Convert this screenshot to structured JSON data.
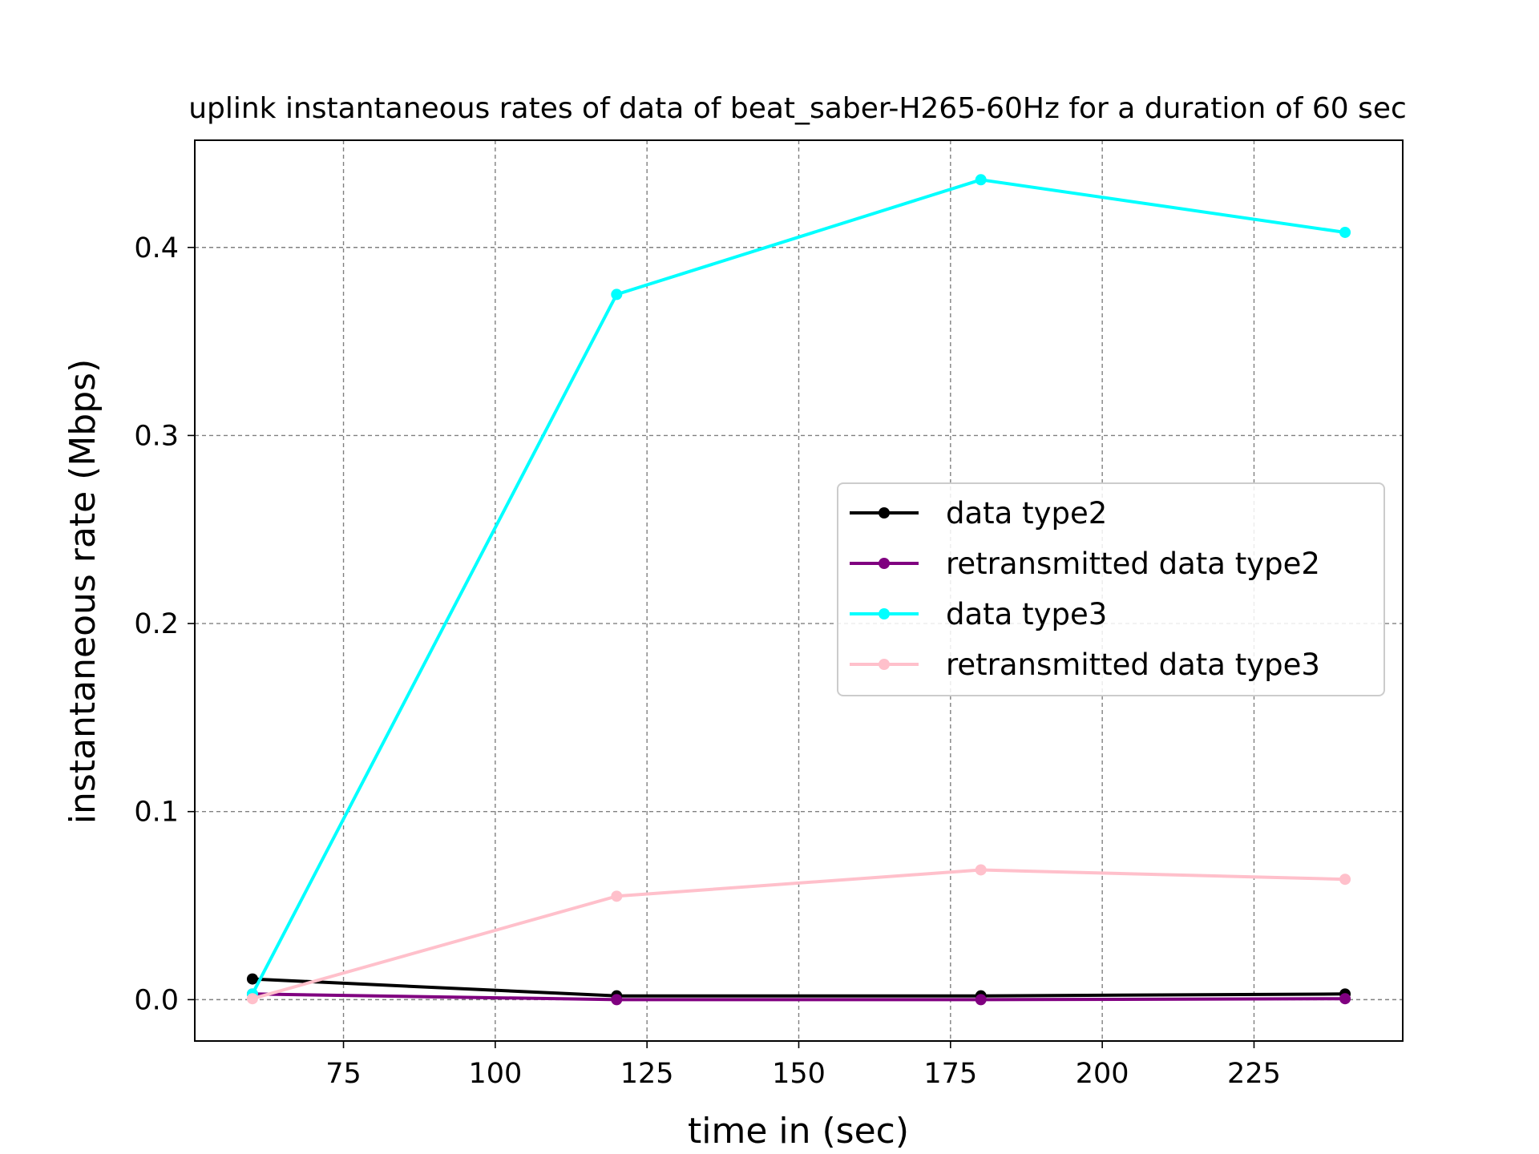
{
  "chart_data": {
    "type": "line",
    "title": "uplink instantaneous rates of data of beat_saber-H265-60Hz for a duration of 60 sec",
    "xlabel": "time in (sec)",
    "ylabel": "instantaneous rate (Mbps)",
    "xlim": [
      50.5,
      249.5
    ],
    "ylim": [
      -0.022,
      0.457
    ],
    "xticks": [
      75,
      100,
      125,
      150,
      175,
      200,
      225
    ],
    "xtick_labels": [
      "75",
      "100",
      "125",
      "150",
      "175",
      "200",
      "225"
    ],
    "yticks": [
      0.0,
      0.1,
      0.2,
      0.3,
      0.4
    ],
    "ytick_labels": [
      "0.0",
      "0.1",
      "0.2",
      "0.3",
      "0.4"
    ],
    "grid": true,
    "legend_position": "center-right",
    "x": [
      60,
      120,
      180,
      240
    ],
    "series": [
      {
        "name": "data type2",
        "color": "#000000",
        "values": [
          0.011,
          0.002,
          0.002,
          0.003
        ]
      },
      {
        "name": "retransmitted data type2",
        "color": "#800080",
        "values": [
          0.003,
          0.0,
          0.0,
          0.0005
        ]
      },
      {
        "name": "data type3",
        "color": "#00ffff",
        "values": [
          0.003,
          0.375,
          0.436,
          0.408
        ]
      },
      {
        "name": "retransmitted data type3",
        "color": "#ffc0cb",
        "values": [
          0.0005,
          0.055,
          0.069,
          0.064
        ]
      }
    ]
  }
}
